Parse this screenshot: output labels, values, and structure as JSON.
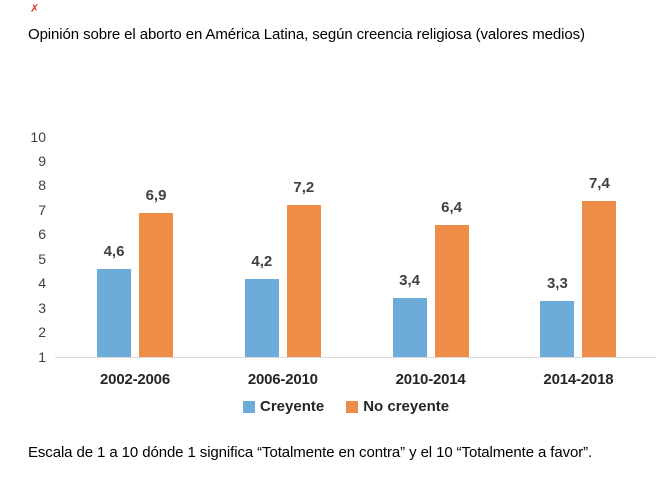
{
  "marker": {
    "glyph": "✗"
  },
  "title": "Opinión sobre el aborto en América Latina, según creencia religiosa (valores medios)",
  "footnote": "Escala de 1 a 10 dónde 1 significa “Totalmente en contra” y el 10 “Totalmente a favor”.",
  "chart_data": {
    "type": "bar",
    "title": "Opinión sobre el aborto en América Latina, según creencia religiosa (valores medios)",
    "categories": [
      "2002-2006",
      "2006-2010",
      "2010-2014",
      "2014-2018"
    ],
    "series": [
      {
        "name": "Creyente",
        "color": "#6dabd8",
        "values": [
          4.6,
          4.2,
          3.4,
          3.3
        ],
        "labels": [
          "4,6",
          "4,2",
          "3,4",
          "3,3"
        ]
      },
      {
        "name": "No creyente",
        "color": "#ee8d47",
        "values": [
          6.9,
          7.2,
          6.4,
          7.4
        ],
        "labels": [
          "6,9",
          "7,2",
          "6,4",
          "7,4"
        ]
      }
    ],
    "ylim": [
      1,
      10
    ],
    "yticks": [
      1,
      2,
      3,
      4,
      5,
      6,
      7,
      8,
      9,
      10
    ],
    "grid": false,
    "legend_position": "bottom",
    "axis_line_color": "#d9d9d9",
    "data_label_color": "#404040",
    "tick_label_color": "#404040",
    "category_label_color": "#262626",
    "note": "Escala de 1 a 10 dónde 1 significa “Totalmente en contra” y el 10 “Totalmente a favor”."
  }
}
